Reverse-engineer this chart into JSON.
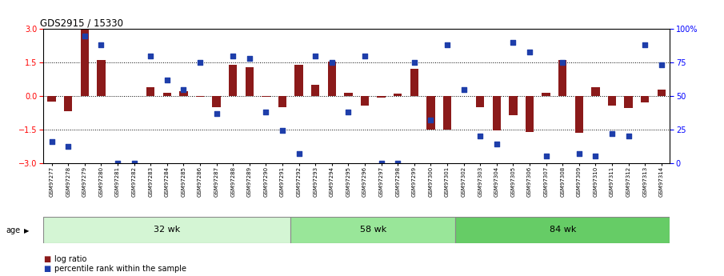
{
  "title": "GDS2915 / 15330",
  "samples": [
    "GSM97277",
    "GSM97278",
    "GSM97279",
    "GSM97280",
    "GSM97281",
    "GSM97282",
    "GSM97283",
    "GSM97284",
    "GSM97285",
    "GSM97286",
    "GSM97287",
    "GSM97288",
    "GSM97289",
    "GSM97290",
    "GSM97291",
    "GSM97292",
    "GSM97293",
    "GSM97294",
    "GSM97295",
    "GSM97296",
    "GSM97297",
    "GSM97298",
    "GSM97299",
    "GSM97300",
    "GSM97301",
    "GSM97302",
    "GSM97303",
    "GSM97304",
    "GSM97305",
    "GSM97306",
    "GSM97307",
    "GSM97308",
    "GSM97309",
    "GSM97310",
    "GSM97311",
    "GSM97312",
    "GSM97313",
    "GSM97314"
  ],
  "log_ratio": [
    -0.25,
    -0.7,
    3.0,
    1.6,
    0.0,
    0.0,
    0.4,
    0.15,
    0.2,
    -0.05,
    -0.5,
    1.4,
    1.3,
    -0.05,
    -0.5,
    1.4,
    0.5,
    1.55,
    0.15,
    -0.45,
    -0.08,
    0.1,
    1.2,
    -1.5,
    -1.5,
    0.0,
    -0.5,
    -1.55,
    -0.85,
    -1.6,
    0.15,
    1.6,
    -1.65,
    0.4,
    -0.45,
    -0.55,
    -0.3,
    0.3
  ],
  "percentile": [
    16,
    12,
    95,
    88,
    0,
    0,
    80,
    62,
    55,
    75,
    37,
    80,
    78,
    38,
    24,
    7,
    80,
    75,
    38,
    80,
    0,
    0,
    75,
    32,
    88,
    55,
    20,
    14,
    90,
    83,
    5,
    75,
    7,
    5,
    22,
    20,
    88,
    73
  ],
  "group_labels": [
    "32 wk",
    "58 wk",
    "84 wk"
  ],
  "group_starts": [
    0,
    15,
    25
  ],
  "group_ends": [
    15,
    25,
    38
  ],
  "group_colors": [
    "#d4f5d4",
    "#99e699",
    "#66cc66"
  ],
  "bar_color": "#8B1A1A",
  "dot_color": "#1E3EAA",
  "ylim": [
    -3,
    3
  ],
  "yticks_left": [
    -3,
    -1.5,
    0,
    1.5,
    3
  ],
  "yticks_right": [
    0,
    25,
    50,
    75,
    100
  ],
  "dotted_lines": [
    -1.5,
    0,
    1.5
  ],
  "legend_log_ratio": "log ratio",
  "legend_percentile": "percentile rank within the sample",
  "age_label": "age"
}
